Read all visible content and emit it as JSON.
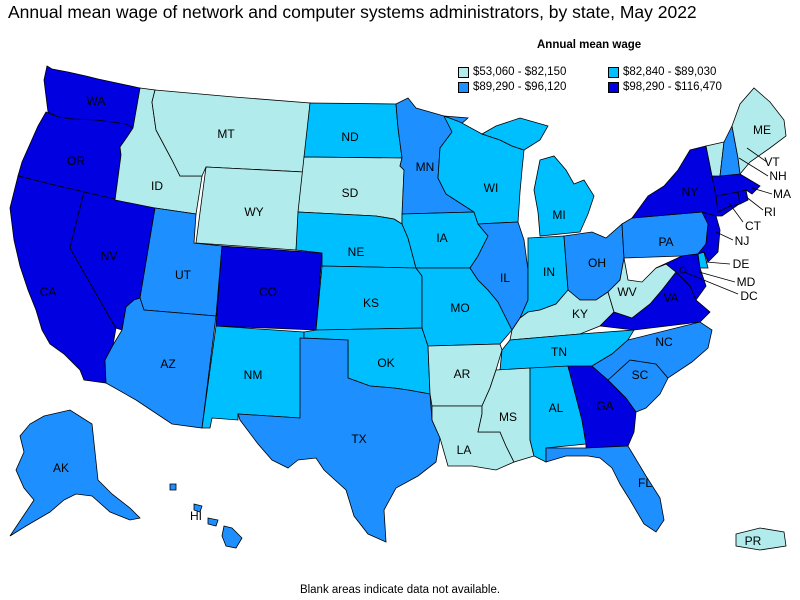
{
  "title": "Annual mean wage of network and computer systems administrators, by state, May 2022",
  "legend": {
    "title": "Annual mean wage",
    "items": [
      {
        "label": "$53,060 - $82,150",
        "color": "#b2ebeb"
      },
      {
        "label": "$82,840 - $89,030",
        "color": "#00bfff"
      },
      {
        "label": "$89,290 - $96,120",
        "color": "#1e8fff"
      },
      {
        "label": "$98,290 - $116,470",
        "color": "#0000e0"
      }
    ]
  },
  "footnote": "Blank areas indicate data not available.",
  "states": {
    "WA": {
      "label": "WA",
      "tier": 3
    },
    "OR": {
      "label": "OR",
      "tier": 3
    },
    "CA": {
      "label": "CA",
      "tier": 3
    },
    "NV": {
      "label": "NV",
      "tier": 3
    },
    "ID": {
      "label": "ID",
      "tier": 0
    },
    "MT": {
      "label": "MT",
      "tier": 0
    },
    "WY": {
      "label": "WY",
      "tier": 0
    },
    "UT": {
      "label": "UT",
      "tier": 2
    },
    "CO": {
      "label": "CO",
      "tier": 3
    },
    "AZ": {
      "label": "AZ",
      "tier": 2
    },
    "NM": {
      "label": "NM",
      "tier": 1
    },
    "ND": {
      "label": "ND",
      "tier": 1
    },
    "SD": {
      "label": "SD",
      "tier": 0
    },
    "NE": {
      "label": "NE",
      "tier": 1
    },
    "KS": {
      "label": "KS",
      "tier": 1
    },
    "OK": {
      "label": "OK",
      "tier": 1
    },
    "TX": {
      "label": "TX",
      "tier": 2
    },
    "MN": {
      "label": "MN",
      "tier": 2
    },
    "IA": {
      "label": "IA",
      "tier": 1
    },
    "MO": {
      "label": "MO",
      "tier": 1
    },
    "AR": {
      "label": "AR",
      "tier": 0
    },
    "LA": {
      "label": "LA",
      "tier": 0
    },
    "WI": {
      "label": "WI",
      "tier": 1
    },
    "IL": {
      "label": "IL",
      "tier": 2
    },
    "MI": {
      "label": "MI",
      "tier": 1
    },
    "IN": {
      "label": "IN",
      "tier": 1
    },
    "OH": {
      "label": "OH",
      "tier": 2
    },
    "KY": {
      "label": "KY",
      "tier": 0
    },
    "TN": {
      "label": "TN",
      "tier": 1
    },
    "MS": {
      "label": "MS",
      "tier": 0
    },
    "AL": {
      "label": "AL",
      "tier": 1
    },
    "GA": {
      "label": "GA",
      "tier": 3
    },
    "FL": {
      "label": "FL",
      "tier": 2
    },
    "SC": {
      "label": "SC",
      "tier": 2
    },
    "NC": {
      "label": "NC",
      "tier": 2
    },
    "VA": {
      "label": "VA",
      "tier": 3
    },
    "WV": {
      "label": "WV",
      "tier": 0
    },
    "PA": {
      "label": "PA",
      "tier": 2
    },
    "NY": {
      "label": "NY",
      "tier": 3
    },
    "VT": {
      "label": "VT",
      "tier": 0
    },
    "NH": {
      "label": "NH",
      "tier": 2
    },
    "ME": {
      "label": "ME",
      "tier": 0
    },
    "MA": {
      "label": "MA",
      "tier": 3
    },
    "RI": {
      "label": "RI",
      "tier": 3
    },
    "CT": {
      "label": "CT",
      "tier": 3
    },
    "NJ": {
      "label": "NJ",
      "tier": 3
    },
    "DE": {
      "label": "DE",
      "tier": 1
    },
    "MD": {
      "label": "MD",
      "tier": 3
    },
    "DC": {
      "label": "DC",
      "tier": 3
    },
    "AK": {
      "label": "AK",
      "tier": 2
    },
    "HI": {
      "label": "HI",
      "tier": 2
    },
    "PR": {
      "label": "PR",
      "tier": 0
    }
  }
}
